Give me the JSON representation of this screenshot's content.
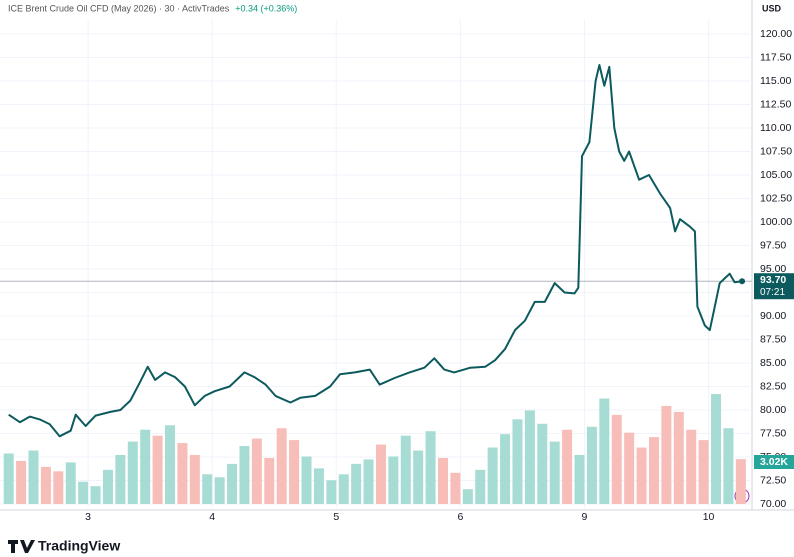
{
  "chart_data": {
    "type": "line",
    "title": "ICE Brent Crude Oil CFD (May 2026) · 30 · ActivTrades",
    "change": "+0.34 (+0.36%)",
    "currency": "USD",
    "brand": "TradingView",
    "countdown": "07:21",
    "last_label": {
      "value": 93.7,
      "label": "93.70"
    },
    "color": "#0d5a5e",
    "grid": true,
    "xlim": [
      2.29,
      8.35
    ],
    "xticks": [
      3,
      4,
      5,
      6,
      {
        "value": 7,
        "label": "9"
      },
      {
        "value": 8,
        "label": "10"
      }
    ],
    "ylim": [
      70,
      120
    ],
    "yticks": [
      {
        "value": 70,
        "label": "70.00"
      },
      {
        "value": 72.5,
        "label": "72.50"
      },
      {
        "value": 75,
        "label": "75.00"
      },
      {
        "value": 77.5,
        "label": "77.50"
      },
      {
        "value": 80,
        "label": "80.00"
      },
      {
        "value": 82.5,
        "label": "82.50"
      },
      {
        "value": 85,
        "label": "85.00"
      },
      {
        "value": 87.5,
        "label": "87.50"
      },
      {
        "value": 90,
        "label": "90.00"
      },
      {
        "value": 92.5,
        "label": "92.50"
      },
      {
        "value": 95,
        "label": "95.00"
      },
      {
        "value": 97.5,
        "label": "97.50"
      },
      {
        "value": 100,
        "label": "100.00"
      },
      {
        "value": 102.5,
        "label": "102.50"
      },
      {
        "value": 105,
        "label": "105.00"
      },
      {
        "value": 107.5,
        "label": "107.50"
      },
      {
        "value": 110,
        "label": "110.00"
      },
      {
        "value": 112.5,
        "label": "112.50"
      },
      {
        "value": 115,
        "label": "115.00"
      },
      {
        "value": 117.5,
        "label": "117.50"
      },
      {
        "value": 120,
        "label": "120.00"
      }
    ],
    "x": [
      2.36,
      2.45,
      2.53,
      2.61,
      2.69,
      2.77,
      2.86,
      2.9,
      2.98,
      3.06,
      3.18,
      3.26,
      3.34,
      3.42,
      3.48,
      3.54,
      3.62,
      3.7,
      3.78,
      3.86,
      3.94,
      4.02,
      4.14,
      4.26,
      4.34,
      4.43,
      4.51,
      4.63,
      4.71,
      4.83,
      4.95,
      5.03,
      5.15,
      5.27,
      5.35,
      5.47,
      5.59,
      5.71,
      5.79,
      5.87,
      5.95,
      6.08,
      6.2,
      6.28,
      6.36,
      6.44,
      6.52,
      6.6,
      6.68,
      6.76,
      6.84,
      6.92,
      6.95,
      6.98,
      7.04,
      7.09,
      7.12,
      7.16,
      7.2,
      7.24,
      7.28,
      7.32,
      7.36,
      7.44,
      7.52,
      7.61,
      7.69,
      7.73,
      7.77,
      7.85,
      7.89,
      7.91,
      7.97,
      8.01,
      8.05,
      8.09,
      8.17,
      8.21,
      8.27
    ],
    "values": [
      79.5,
      78.7,
      79.3,
      79,
      78.5,
      77.2,
      77.8,
      79.5,
      78.3,
      79.4,
      79.8,
      80,
      81,
      83,
      84.6,
      83.2,
      84,
      83.5,
      82.5,
      80.5,
      81.5,
      82,
      82.5,
      84,
      83.5,
      82.7,
      81.5,
      80.8,
      81.3,
      81.5,
      82.5,
      83.8,
      84,
      84.3,
      82.7,
      83.4,
      84,
      84.5,
      85.5,
      84.3,
      84,
      84.5,
      84.6,
      85.3,
      86.5,
      88.5,
      89.5,
      91.5,
      91.5,
      93.5,
      92.5,
      92.4,
      93,
      107,
      108.5,
      115,
      116.7,
      114.5,
      116.5,
      110,
      107.5,
      106.5,
      107.5,
      104.5,
      105,
      103,
      101.5,
      99,
      100.3,
      99.5,
      99,
      91,
      89,
      88.5,
      91,
      93.5,
      94.5,
      93.6,
      93.7
    ],
    "volume": {
      "up_color": "#a7dcd5",
      "down_color": "#f7bdb9",
      "ylim": [
        0,
        14000
      ],
      "x": [
        2.36,
        2.46,
        2.56,
        2.66,
        2.76,
        2.86,
        2.96,
        3.06,
        3.16,
        3.26,
        3.36,
        3.46,
        3.56,
        3.66,
        3.76,
        3.86,
        3.96,
        4.06,
        4.16,
        4.26,
        4.36,
        4.46,
        4.56,
        4.66,
        4.76,
        4.86,
        4.96,
        5.06,
        5.16,
        5.26,
        5.36,
        5.46,
        5.56,
        5.66,
        5.76,
        5.86,
        5.96,
        6.06,
        6.16,
        6.26,
        6.36,
        6.46,
        6.56,
        6.66,
        6.76,
        6.86,
        6.96,
        7.06,
        7.16,
        7.26,
        7.36,
        7.46,
        7.56,
        7.66,
        7.76,
        7.86,
        7.96,
        8.06,
        8.16,
        8.26
      ],
      "values": [
        3400,
        2900,
        3600,
        2500,
        2200,
        2800,
        1500,
        1200,
        2300,
        3300,
        4200,
        5000,
        4600,
        5300,
        4100,
        3300,
        2000,
        1800,
        2700,
        3900,
        4400,
        3100,
        5100,
        4300,
        3200,
        2400,
        1600,
        2000,
        2700,
        3000,
        4000,
        3200,
        4600,
        3600,
        4900,
        3100,
        2100,
        1000,
        2300,
        3800,
        4700,
        5700,
        6300,
        5400,
        4200,
        5000,
        3300,
        5200,
        7100,
        6000,
        4800,
        3800,
        4500,
        6600,
        6200,
        5000,
        4300,
        7400,
        5100,
        3020
      ],
      "value_labels": [
        null,
        null,
        null,
        null,
        null,
        null,
        null,
        null,
        null,
        null,
        null,
        null,
        null,
        null,
        null,
        null,
        null,
        null,
        null,
        null,
        null,
        null,
        null,
        null,
        null,
        null,
        null,
        null,
        null,
        null,
        null,
        null,
        null,
        null,
        null,
        null,
        null,
        null,
        null,
        null,
        null,
        null,
        null,
        null,
        null,
        null,
        null,
        null,
        null,
        null,
        null,
        null,
        null,
        null,
        null,
        null,
        null,
        null,
        null,
        "3.02K"
      ]
    }
  }
}
